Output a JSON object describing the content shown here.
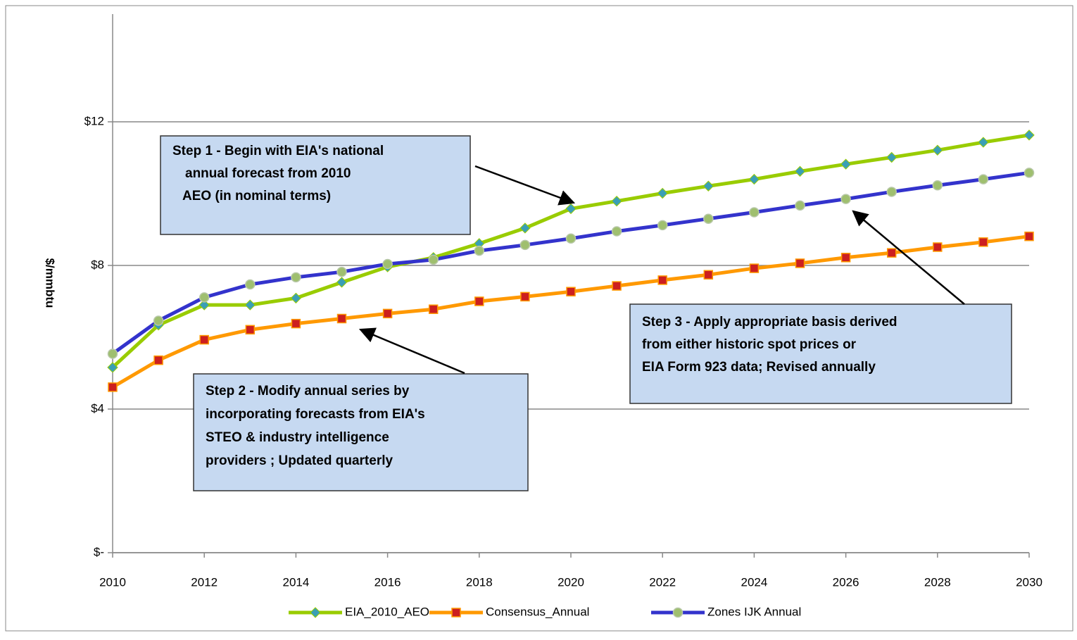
{
  "chart_data": {
    "type": "line",
    "y_label": "$/mmbtu",
    "x": [
      2010,
      2011,
      2012,
      2013,
      2014,
      2015,
      2016,
      2017,
      2018,
      2019,
      2020,
      2021,
      2022,
      2023,
      2024,
      2025,
      2026,
      2027,
      2028,
      2029,
      2030
    ],
    "series": [
      {
        "name": "EIA_2010_AEO",
        "color": "#99cc00",
        "marker_color": "#3a9fb5",
        "marker": "diamond",
        "values": [
          5.16,
          6.34,
          6.9,
          6.9,
          7.09,
          7.53,
          7.96,
          8.22,
          8.61,
          9.04,
          9.58,
          9.79,
          10.01,
          10.21,
          10.4,
          10.62,
          10.82,
          11.01,
          11.21,
          11.43,
          11.63
        ]
      },
      {
        "name": "Consensus_Annual",
        "color": "#ff9900",
        "marker_color": "#cc1f1f",
        "marker": "square",
        "values": [
          4.61,
          5.36,
          5.93,
          6.21,
          6.38,
          6.52,
          6.66,
          6.78,
          7.0,
          7.13,
          7.27,
          7.43,
          7.59,
          7.74,
          7.92,
          8.06,
          8.22,
          8.35,
          8.51,
          8.65,
          8.81
        ]
      },
      {
        "name": "Zones IJK Annual",
        "color": "#3333cc",
        "marker_color": "#9fbf6f",
        "marker": "circle",
        "values": [
          5.54,
          6.46,
          7.11,
          7.47,
          7.67,
          7.82,
          8.04,
          8.16,
          8.41,
          8.57,
          8.75,
          8.95,
          9.12,
          9.3,
          9.48,
          9.67,
          9.85,
          10.05,
          10.23,
          10.4,
          10.58
        ]
      }
    ],
    "xlim": [
      2010,
      2030
    ],
    "xticks": [
      2010,
      2012,
      2014,
      2016,
      2018,
      2020,
      2022,
      2024,
      2026,
      2028,
      2030
    ],
    "ylim": [
      0,
      15
    ],
    "yticks": [
      {
        "value": 0,
        "label": "$-"
      },
      {
        "value": 4,
        "label": "$4"
      },
      {
        "value": 8,
        "label": "$8"
      },
      {
        "value": 12,
        "label": "$12"
      }
    ],
    "grid": true,
    "legend": "bottom",
    "annotations": [
      {
        "lines": [
          "Step 1 -  Begin with EIA's national",
          "annual forecast  from 2010",
          "AEO (in nominal terms)"
        ]
      },
      {
        "lines": [
          "Step 2 -  Modify annual series  by",
          "incorporating forecasts from EIA's",
          "STEO & industry intelligence",
          "providers ; Updated quarterly"
        ]
      },
      {
        "lines": [
          "Step 3 - Apply appropriate basis derived",
          "from either historic  spot prices  or",
          "EIA Form 923  data; Revised annually"
        ]
      }
    ]
  }
}
